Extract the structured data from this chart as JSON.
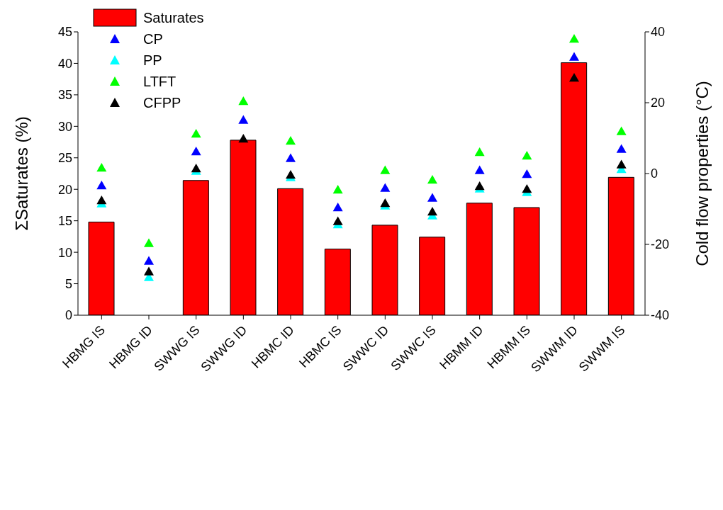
{
  "chart_data": {
    "type": "bar",
    "ylabel": "ΣSaturates (%)",
    "y2label": "Cold flow properties (°C)",
    "categories": [
      "HBMG IS",
      "HBMG ID",
      "SWWG IS",
      "SWWG ID",
      "HBMC ID",
      "HBMC IS",
      "SWWC ID",
      "SWWC IS",
      "HBMM ID",
      "HBMM IS",
      "SWWM ID",
      "SWWM IS"
    ],
    "series": [
      {
        "name": "Saturates",
        "color": "#ff0000",
        "values": [
          14.8,
          null,
          21.4,
          27.8,
          20.1,
          10.5,
          14.3,
          12.4,
          17.8,
          17.1,
          40.1,
          21.9
        ]
      },
      {
        "name": "CP",
        "type": "scatter",
        "axis": "y2",
        "color": "#0000ff",
        "values": [
          -3.4,
          -24.7,
          6.2,
          15.1,
          4.3,
          -9.6,
          -4.1,
          -6.9,
          0.9,
          -0.2,
          32.9,
          6.9
        ]
      },
      {
        "name": "PP",
        "type": "scatter",
        "axis": "y2",
        "color": "#00ffff",
        "values": [
          -8.5,
          -29.3,
          0.7,
          null,
          -1.1,
          -14.4,
          -9.1,
          -11.9,
          -4.3,
          -5.3,
          null,
          1.2
        ]
      },
      {
        "name": "LTFT",
        "type": "scatter",
        "axis": "y2",
        "color": "#00ff00",
        "values": [
          1.6,
          -19.7,
          11.2,
          20.4,
          9.2,
          -4.6,
          0.9,
          -1.8,
          6.0,
          5.0,
          38.0,
          11.9
        ]
      },
      {
        "name": "CFPP",
        "type": "scatter",
        "axis": "y2",
        "color": "#000000",
        "values": [
          -7.6,
          -27.7,
          1.4,
          9.8,
          -0.4,
          -13.5,
          -8.4,
          -10.8,
          -3.6,
          -4.4,
          27.0,
          2.5
        ]
      }
    ],
    "ylim": [
      0,
      45
    ],
    "yticks": [
      0,
      5,
      10,
      15,
      20,
      25,
      30,
      35,
      40,
      45
    ],
    "y2lim": [
      -40,
      40
    ],
    "y2ticks": [
      -40,
      -20,
      0,
      20,
      40
    ],
    "marker": "triangle",
    "legend": "top left",
    "grid": false
  }
}
